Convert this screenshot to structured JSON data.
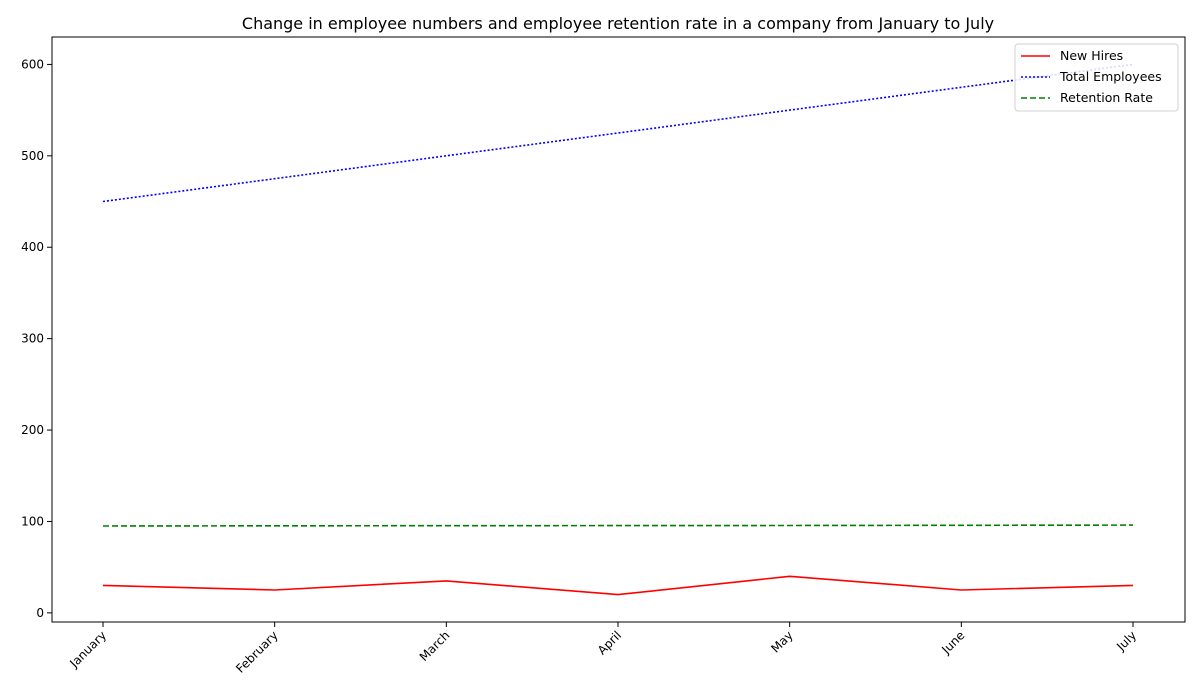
{
  "chart_data": {
    "type": "line",
    "title": "Change in employee numbers and employee retention rate in a company from January to July",
    "xlabel": "",
    "ylabel": "",
    "categories": [
      "January",
      "February",
      "March",
      "April",
      "May",
      "June",
      "July"
    ],
    "ylim": [
      -10,
      630
    ],
    "yticks": [
      0,
      100,
      200,
      300,
      400,
      500,
      600
    ],
    "grid": false,
    "legend_position": "top-right",
    "series": [
      {
        "name": "New Hires",
        "values": [
          30,
          25,
          35,
          20,
          40,
          25,
          30
        ],
        "color": "#ff0000",
        "style": "solid"
      },
      {
        "name": "Total Employees",
        "values": [
          450,
          475,
          500,
          525,
          550,
          575,
          600
        ],
        "color": "#0000ff",
        "style": "dotted"
      },
      {
        "name": "Retention Rate",
        "values": [
          95,
          95.2,
          95.4,
          95.5,
          95.6,
          95.8,
          96
        ],
        "color": "#008000",
        "style": "dashed"
      }
    ]
  }
}
